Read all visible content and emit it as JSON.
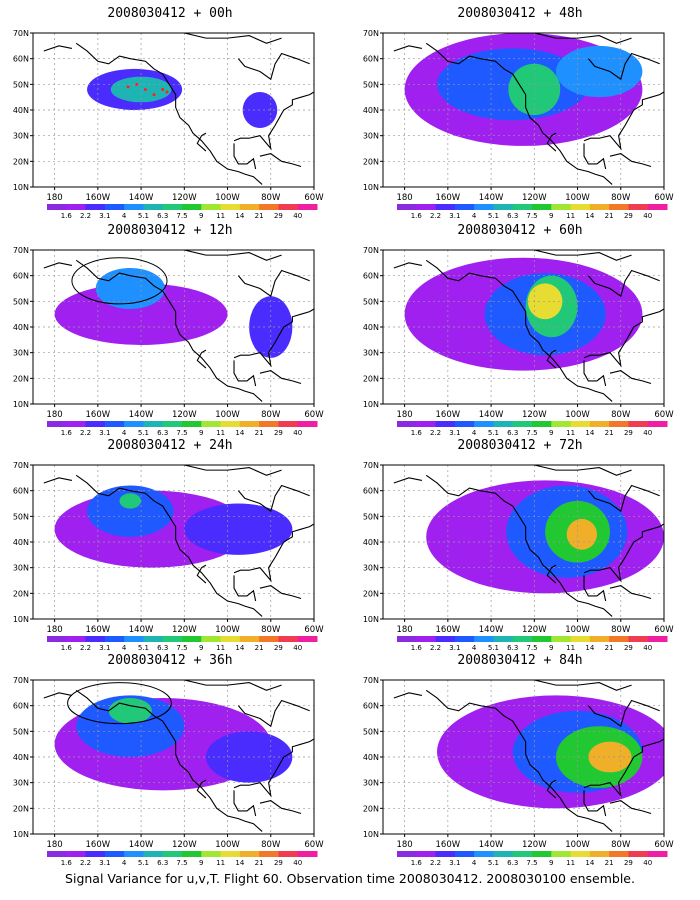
{
  "axes": {
    "y_ticks": [
      "10N",
      "20N",
      "30N",
      "40N",
      "50N",
      "60N",
      "70N"
    ],
    "x_ticks": [
      "180",
      "160W",
      "140W",
      "120W",
      "100W",
      "80W",
      "60W"
    ]
  },
  "colorbar": {
    "labels": [
      "1.6",
      "2.2",
      "3.1",
      "4",
      "5.1",
      "6.3",
      "7.5",
      "9",
      "11",
      "14",
      "21",
      "29",
      "40"
    ],
    "colors": [
      "#8a2be2",
      "#a020f0",
      "#4a2cff",
      "#1e5aff",
      "#1e90ff",
      "#1fb4b4",
      "#20c878",
      "#22c832",
      "#a0e632",
      "#e6dc32",
      "#f0af28",
      "#f07828",
      "#f03c50",
      "#f01ea0"
    ]
  },
  "panels": [
    {
      "title": "2008030412 + 00h",
      "blobs": [
        {
          "cx": -143,
          "cy": 48,
          "rx": 22,
          "ry": 8,
          "level": 2
        },
        {
          "cx": -140,
          "cy": 48,
          "rx": 14,
          "ry": 5,
          "level": 5
        },
        {
          "cx": -85,
          "cy": 40,
          "rx": 8,
          "ry": 7,
          "level": 2
        }
      ],
      "flight": [
        [
          -146,
          49
        ],
        [
          -142,
          50
        ],
        [
          -138,
          48
        ],
        [
          -134,
          46
        ],
        [
          -130,
          48
        ],
        [
          -128,
          47
        ]
      ]
    },
    {
      "title": "2008030412 + 12h",
      "blobs": [
        {
          "cx": -140,
          "cy": 45,
          "rx": 40,
          "ry": 12,
          "level": 1
        },
        {
          "cx": -145,
          "cy": 55,
          "rx": 16,
          "ry": 8,
          "level": 4
        },
        {
          "cx": -80,
          "cy": 40,
          "rx": 10,
          "ry": 12,
          "level": 2
        }
      ],
      "ellipse": {
        "cx": -150,
        "cy": 58,
        "rx": 22,
        "ry": 9
      }
    },
    {
      "title": "2008030412 + 24h",
      "blobs": [
        {
          "cx": -135,
          "cy": 45,
          "rx": 45,
          "ry": 15,
          "level": 1
        },
        {
          "cx": -145,
          "cy": 52,
          "rx": 20,
          "ry": 10,
          "level": 3
        },
        {
          "cx": -145,
          "cy": 56,
          "rx": 5,
          "ry": 3,
          "level": 6
        },
        {
          "cx": -95,
          "cy": 45,
          "rx": 25,
          "ry": 10,
          "level": 2
        }
      ]
    },
    {
      "title": "2008030412 + 36h",
      "blobs": [
        {
          "cx": -130,
          "cy": 45,
          "rx": 50,
          "ry": 18,
          "level": 1
        },
        {
          "cx": -145,
          "cy": 52,
          "rx": 25,
          "ry": 12,
          "level": 3
        },
        {
          "cx": -145,
          "cy": 58,
          "rx": 10,
          "ry": 5,
          "level": 6
        },
        {
          "cx": -90,
          "cy": 40,
          "rx": 20,
          "ry": 10,
          "level": 2
        }
      ],
      "ellipse": {
        "cx": -150,
        "cy": 61,
        "rx": 24,
        "ry": 8
      }
    },
    {
      "title": "2008030412 + 48h",
      "blobs": [
        {
          "cx": -125,
          "cy": 48,
          "rx": 55,
          "ry": 22,
          "level": 1
        },
        {
          "cx": -130,
          "cy": 50,
          "rx": 35,
          "ry": 14,
          "level": 3
        },
        {
          "cx": -120,
          "cy": 48,
          "rx": 12,
          "ry": 10,
          "level": 6
        },
        {
          "cx": -90,
          "cy": 55,
          "rx": 20,
          "ry": 10,
          "level": 4
        }
      ]
    },
    {
      "title": "2008030412 + 60h",
      "blobs": [
        {
          "cx": -125,
          "cy": 45,
          "rx": 55,
          "ry": 22,
          "level": 1
        },
        {
          "cx": -115,
          "cy": 45,
          "rx": 28,
          "ry": 16,
          "level": 3
        },
        {
          "cx": -112,
          "cy": 48,
          "rx": 12,
          "ry": 12,
          "level": 6
        },
        {
          "cx": -115,
          "cy": 50,
          "rx": 8,
          "ry": 7,
          "level": 9
        }
      ]
    },
    {
      "title": "2008030412 + 72h",
      "blobs": [
        {
          "cx": -115,
          "cy": 42,
          "rx": 55,
          "ry": 22,
          "level": 1
        },
        {
          "cx": -105,
          "cy": 44,
          "rx": 28,
          "ry": 18,
          "level": 3
        },
        {
          "cx": -100,
          "cy": 44,
          "rx": 15,
          "ry": 12,
          "level": 7
        },
        {
          "cx": -98,
          "cy": 43,
          "rx": 7,
          "ry": 6,
          "level": 10
        }
      ]
    },
    {
      "title": "2008030412 + 84h",
      "blobs": [
        {
          "cx": -110,
          "cy": 42,
          "rx": 55,
          "ry": 22,
          "level": 1
        },
        {
          "cx": -100,
          "cy": 42,
          "rx": 30,
          "ry": 16,
          "level": 3
        },
        {
          "cx": -90,
          "cy": 40,
          "rx": 20,
          "ry": 12,
          "level": 7
        },
        {
          "cx": -85,
          "cy": 40,
          "rx": 10,
          "ry": 6,
          "level": 10
        }
      ]
    }
  ],
  "footer": "Signal Variance for u,v,T. Flight 60. Observation time 2008030412. 2008030100 ensemble."
}
